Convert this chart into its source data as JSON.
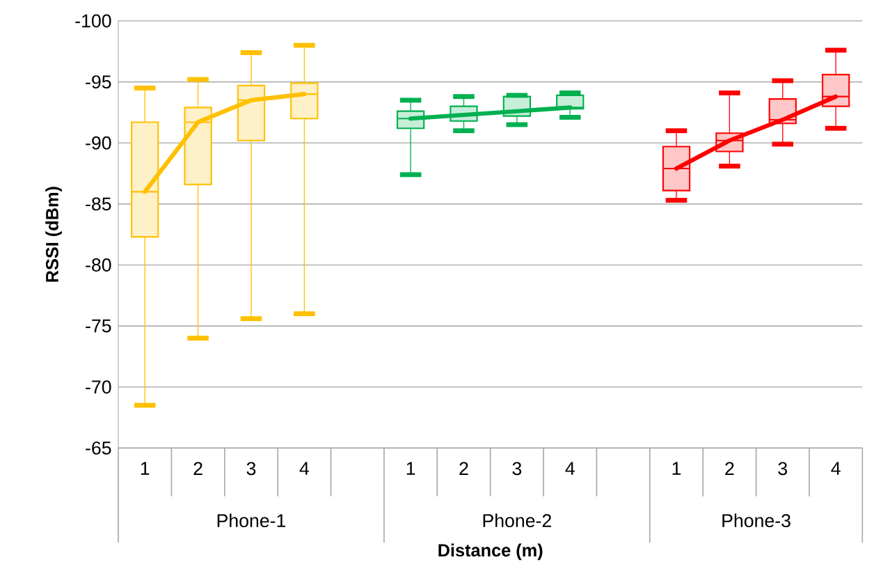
{
  "chart_data": {
    "type": "box",
    "xlabel": "Distance (m)",
    "ylabel": "RSSI (dBm)",
    "categories": [
      "1",
      "2",
      "3",
      "4",
      null,
      "1",
      "2",
      "3",
      "4",
      null,
      "1",
      "2",
      "3",
      "4"
    ],
    "ylim": [
      -65,
      -100
    ],
    "yticks": [
      -100,
      -95,
      -90,
      -85,
      -80,
      -75,
      -70,
      -65
    ],
    "grid": "y",
    "annotations": [
      "Phone-1",
      "Phone-2",
      "Phone-3"
    ],
    "series": [
      {
        "color": "#ffc000",
        "boxes": [
          {
            "low": -94.5,
            "q1": -91.7,
            "median": -86.0,
            "q3": -82.3,
            "high": -68.5
          },
          {
            "low": -95.2,
            "q1": -92.9,
            "median": -91.7,
            "q3": -86.6,
            "high": -74.0
          },
          {
            "low": -97.4,
            "q1": -94.7,
            "median": -93.5,
            "q3": -90.2,
            "high": -75.6
          },
          {
            "low": -98.0,
            "q1": -94.9,
            "median": -94.0,
            "q3": -92.0,
            "high": -76.0
          },
          null,
          null,
          null,
          null,
          null,
          null,
          null,
          null,
          null,
          null
        ]
      },
      {
        "color": "#00b050",
        "boxes": [
          null,
          null,
          null,
          null,
          null,
          {
            "low": -93.5,
            "q1": -92.6,
            "median": -92.0,
            "q3": -91.2,
            "high": -87.4
          },
          {
            "low": -93.8,
            "q1": -93.0,
            "median": -92.3,
            "q3": -91.8,
            "high": -91.0
          },
          {
            "low": -93.9,
            "q1": -93.8,
            "median": -92.6,
            "q3": -92.2,
            "high": -91.5
          },
          {
            "low": -94.1,
            "q1": -93.9,
            "median": -92.9,
            "q3": -92.8,
            "high": -92.1
          },
          null,
          null,
          null,
          null,
          null
        ]
      },
      {
        "color": "#ff0000",
        "boxes": [
          null,
          null,
          null,
          null,
          null,
          null,
          null,
          null,
          null,
          null,
          {
            "low": -91.0,
            "q1": -89.7,
            "median": -87.9,
            "q3": -86.1,
            "high": -85.3
          },
          {
            "low": -94.1,
            "q1": -90.8,
            "median": -90.2,
            "q3": -89.3,
            "high": -88.1
          },
          {
            "low": -95.1,
            "q1": -93.6,
            "median": -91.9,
            "q3": -91.6,
            "high": -89.9
          },
          {
            "low": -97.6,
            "q1": -95.6,
            "median": -93.8,
            "q3": -93.0,
            "high": -91.2
          }
        ]
      },
      {
        "type": "line",
        "color": "#ffc000",
        "values": [
          -86.0,
          -91.7,
          -93.5,
          -94.0,
          null,
          null,
          null,
          null,
          null,
          null,
          null,
          null,
          null,
          null
        ]
      },
      {
        "type": "line",
        "color": "#00b050",
        "values": [
          null,
          null,
          null,
          null,
          null,
          -92.0,
          -92.3,
          -92.6,
          -92.9,
          null,
          null,
          null,
          null,
          null
        ]
      },
      {
        "type": "line",
        "color": "#ff0000",
        "values": [
          null,
          null,
          null,
          null,
          null,
          null,
          null,
          null,
          null,
          null,
          -87.9,
          -90.2,
          -91.9,
          -93.8
        ]
      }
    ]
  }
}
